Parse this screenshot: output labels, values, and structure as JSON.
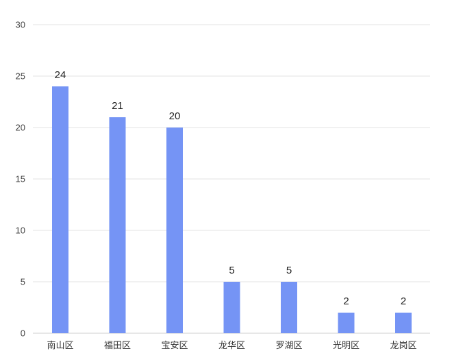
{
  "chart_data": {
    "type": "bar",
    "title": "",
    "xlabel": "",
    "ylabel": "",
    "categories": [
      "南山区",
      "福田区",
      "宝安区",
      "龙华区",
      "罗湖区",
      "光明区",
      "龙岗区"
    ],
    "values": [
      24,
      21,
      20,
      5,
      5,
      2,
      2
    ],
    "ylim": [
      0,
      30
    ],
    "yticks": [
      "0",
      "5",
      "10",
      "15",
      "20",
      "25",
      "30"
    ],
    "grid": true,
    "legend": "none",
    "bar_color": "#7594f5",
    "data_labels": [
      "24",
      "21",
      "20",
      "5",
      "5",
      "2",
      "2"
    ]
  }
}
